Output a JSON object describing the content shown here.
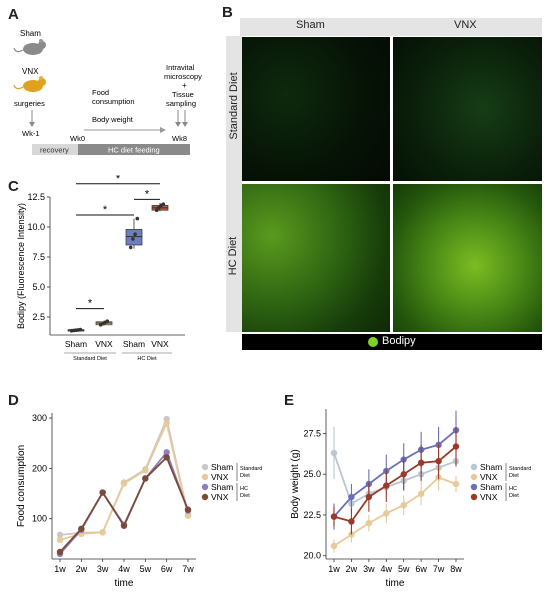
{
  "panels": {
    "a": "A",
    "b": "B",
    "c": "C",
    "d": "D",
    "e": "E"
  },
  "panel_a": {
    "sham": "Sham",
    "vnx": "VNX",
    "surgeries": "surgeries",
    "food_consumption_1": "Food",
    "food_consumption_2": "consumption",
    "body_weight": "Body weight",
    "intravital_1": "Intravital",
    "intravital_2": "microscopy",
    "plus": "+",
    "tissue_1": "Tissue",
    "tissue_2": "sampling",
    "wk_minus1": "Wk-1",
    "wk0": "Wk0",
    "wk8": "Wk8",
    "recovery": "recovery",
    "hc_feeding": "HC diet feeding"
  },
  "panel_b": {
    "col_sham": "Sham",
    "col_vnx": "VNX",
    "row_standard": "Standard Diet",
    "row_hc": "HC Diet",
    "legend": "Bodipy",
    "legend_color": "#7ed321"
  },
  "chart_data": [
    {
      "id": "C",
      "type": "box",
      "ylabel": "Bodipy (Fluorescence Intensity)",
      "ylim": [
        1.0,
        12.5
      ],
      "yticks": [
        2.5,
        5.0,
        7.5,
        10.0,
        12.5
      ],
      "ytick_labels": [
        "2.5",
        "5.0",
        "7.5",
        "10.0",
        "12.5"
      ],
      "categories": [
        "Sham",
        "VNX",
        "Sham",
        "VNX"
      ],
      "groups": [
        "Standard Diet",
        "HC Diet"
      ],
      "colors": [
        "#7fc8c8",
        "#e8c98a",
        "#6b7fc0",
        "#c0563a"
      ],
      "boxes": [
        {
          "q1": 1.35,
          "median": 1.4,
          "q3": 1.45,
          "min": 1.3,
          "max": 1.5,
          "points": [
            1.35,
            1.38,
            1.4,
            1.42,
            1.45
          ]
        },
        {
          "q1": 1.85,
          "median": 2.0,
          "q3": 2.1,
          "min": 1.8,
          "max": 2.2,
          "points": [
            1.85,
            1.95,
            2.05,
            2.15
          ]
        },
        {
          "q1": 8.5,
          "median": 9.2,
          "q3": 9.8,
          "min": 8.2,
          "max": 10.7,
          "points": [
            8.3,
            9.0,
            9.4,
            10.7
          ]
        },
        {
          "q1": 11.4,
          "median": 11.6,
          "q3": 11.8,
          "min": 11.3,
          "max": 12.0,
          "points": [
            11.4,
            11.6,
            11.8,
            11.9
          ]
        }
      ],
      "sig": [
        "*",
        "*",
        "*",
        "*"
      ]
    },
    {
      "id": "D",
      "type": "line",
      "ylabel": "Food consumption",
      "xlabel": "time",
      "categories": [
        "1w",
        "2w",
        "3w",
        "4w",
        "5w",
        "6w",
        "7w"
      ],
      "yticks": [
        100,
        200,
        300
      ],
      "ylim": [
        20,
        310
      ],
      "series": [
        {
          "name": "Sham",
          "color": "#c8c8c8",
          "values": [
            68,
            72,
            73,
            172,
            198,
            298,
            108
          ]
        },
        {
          "name": "VNX",
          "color": "#e8c99a",
          "values": [
            58,
            70,
            73,
            170,
            196,
            290,
            106
          ]
        },
        {
          "name": "Sham",
          "color": "#8f7fb8",
          "values": [
            30,
            78,
            152,
            88,
            180,
            232,
            116
          ]
        },
        {
          "name": "VNX",
          "color": "#7a4a3a",
          "values": [
            34,
            80,
            152,
            86,
            180,
            222,
            118
          ]
        }
      ]
    },
    {
      "id": "E",
      "type": "line",
      "ylabel": "Body weight (g)",
      "xlabel": "time",
      "categories": [
        "1w",
        "2w",
        "3w",
        "4w",
        "5w",
        "6w",
        "7w",
        "8w"
      ],
      "yticks": [
        20.0,
        22.5,
        25.0,
        27.5
      ],
      "ytick_labels": [
        "20.0",
        "22.5",
        "25.0",
        "27.5"
      ],
      "ylim": [
        19.8,
        29.0
      ],
      "series": [
        {
          "name": "Sham",
          "color": "#b8c8d0",
          "values": [
            26.3,
            23.2,
            23.8,
            24.2,
            24.6,
            25.0,
            25.4,
            25.8
          ],
          "err": [
            1.6,
            0.6,
            0.6,
            0.6,
            0.6,
            0.6,
            0.6,
            0.4
          ]
        },
        {
          "name": "VNX",
          "color": "#e8c99a",
          "values": [
            20.6,
            21.3,
            22.0,
            22.6,
            23.1,
            23.8,
            24.8,
            24.4
          ],
          "err": [
            0.4,
            0.5,
            0.5,
            0.6,
            0.6,
            0.7,
            0.8,
            0.5
          ]
        },
        {
          "name": "Sham",
          "color": "#6b6fb8",
          "values": [
            22.4,
            23.6,
            24.4,
            25.2,
            25.9,
            26.5,
            26.8,
            27.7
          ],
          "err": [
            0.8,
            0.8,
            0.9,
            1.0,
            1.0,
            1.1,
            1.1,
            1.2
          ]
        },
        {
          "name": "VNX",
          "color": "#9a3a2a",
          "values": [
            22.4,
            22.1,
            23.6,
            24.3,
            25.0,
            25.7,
            25.8,
            26.7
          ],
          "err": [
            0.6,
            0.8,
            0.9,
            1.0,
            1.0,
            1.1,
            1.1,
            1.2
          ]
        }
      ]
    }
  ],
  "legend_cd": {
    "sham": "Sham",
    "vnx": "VNX",
    "standard_1": "Standard",
    "standard_2": "Diet",
    "hc_1": "HC",
    "hc_2": "Diet"
  },
  "panel_c_labels": {
    "standard_diet": "Standard Diet",
    "hc_diet": "HC Diet"
  }
}
